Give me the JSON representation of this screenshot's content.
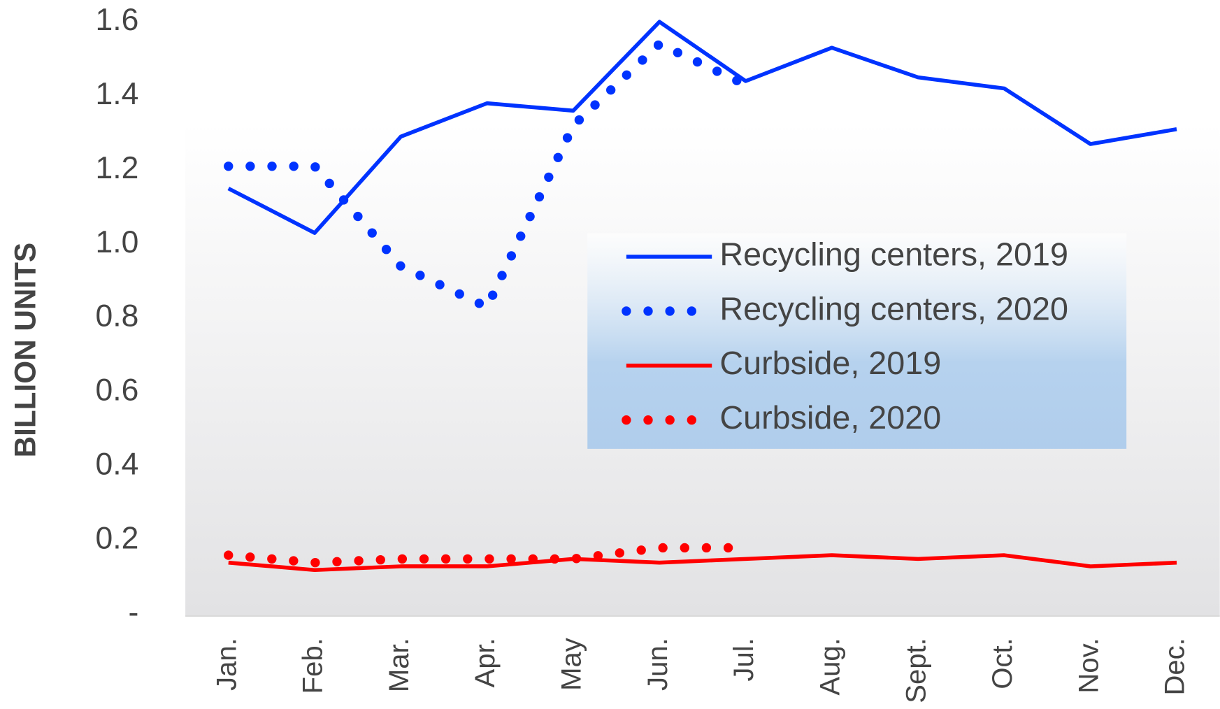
{
  "chart_data": {
    "type": "line",
    "y_label": "BILLION UNITS",
    "categories": [
      "Jan.",
      "Feb.",
      "Mar.",
      "Apr.",
      "May",
      "Jun.",
      "Jul.",
      "Aug.",
      "Sept.",
      "Oct.",
      "Nov.",
      "Dec."
    ],
    "series": [
      {
        "name": "Recycling centers, 2019",
        "color": "#0033ff",
        "style": "solid",
        "values": [
          1.15,
          1.03,
          1.29,
          1.38,
          1.36,
          1.6,
          1.44,
          1.53,
          1.45,
          1.42,
          1.27,
          1.31
        ]
      },
      {
        "name": "Recycling centers, 2020",
        "color": "#0033ff",
        "style": "dotted",
        "values": [
          1.21,
          1.21,
          0.94,
          0.83,
          1.32,
          1.54,
          1.43,
          null,
          null,
          null,
          null,
          null
        ]
      },
      {
        "name": "Curbside, 2019",
        "color": "#ff0000",
        "style": "solid",
        "values": [
          0.14,
          0.12,
          0.13,
          0.13,
          0.15,
          0.14,
          0.15,
          0.16,
          0.15,
          0.16,
          0.13,
          0.14
        ]
      },
      {
        "name": "Curbside, 2020",
        "color": "#ff0000",
        "style": "dotted",
        "values": [
          0.16,
          0.14,
          0.15,
          0.15,
          0.15,
          0.18,
          0.18,
          null,
          null,
          null,
          null,
          null
        ]
      }
    ],
    "ylim": [
      0,
      1.6
    ],
    "yticks": [
      {
        "value": 0,
        "label": "-"
      },
      0.2,
      0.4,
      0.6,
      0.8,
      {
        "value": 1,
        "label": "1.0"
      },
      1.2,
      1.4,
      1.6
    ],
    "grid": false
  }
}
